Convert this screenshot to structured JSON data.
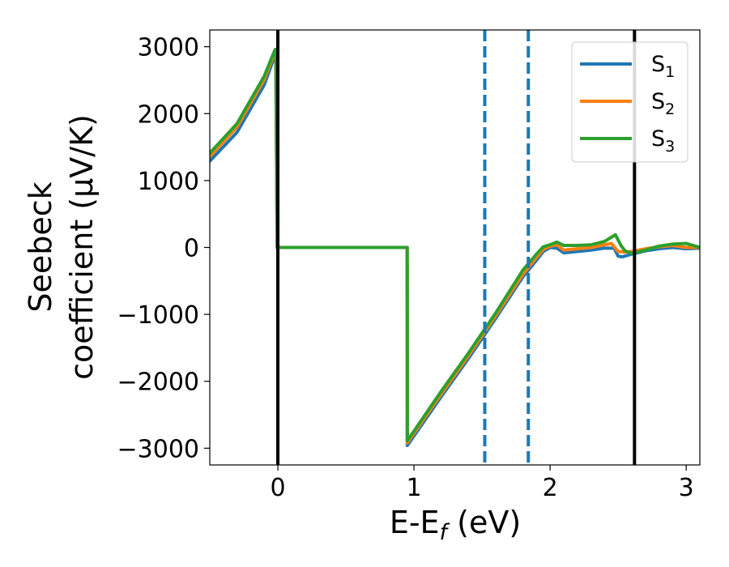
{
  "chart_data": {
    "type": "line",
    "xlabel": "E-E_f (eV)",
    "xlabel_parts": {
      "base": "E-E",
      "sub": "f",
      "unit": " (eV)"
    },
    "ylabel_lines": [
      "Seebeck",
      "coefficient  (μV/K)"
    ],
    "xlim": [
      -0.5,
      3.1
    ],
    "ylim": [
      -3250,
      3250
    ],
    "xticks": [
      0,
      1,
      2,
      3
    ],
    "xtick_labels": [
      "0",
      "1",
      "2",
      "3"
    ],
    "yticks": [
      3000,
      2000,
      1000,
      0,
      -1000,
      -2000,
      -3000
    ],
    "ytick_labels": [
      "3000",
      "2000",
      "1000",
      "0",
      "−1000",
      "−2000",
      "−3000"
    ],
    "grid": false,
    "legend": {
      "position": "top-right"
    },
    "vlines": [
      {
        "x": 0.0,
        "style": "solid",
        "color": "#000000"
      },
      {
        "x": 2.62,
        "style": "solid",
        "color": "#000000"
      },
      {
        "x": 1.52,
        "style": "dashed",
        "color": "#1f77b4"
      },
      {
        "x": 1.84,
        "style": "dashed",
        "color": "#1f77b4"
      }
    ],
    "series": [
      {
        "name": "S",
        "sub": "1",
        "color": "#1f77b4",
        "points": [
          [
            -0.5,
            1290
          ],
          [
            -0.3,
            1720
          ],
          [
            -0.1,
            2430
          ],
          [
            -0.02,
            2880
          ],
          [
            -0.015,
            2880
          ],
          [
            -0.005,
            0
          ],
          [
            0.95,
            0
          ],
          [
            0.951,
            -2960
          ],
          [
            1.2,
            -2230
          ],
          [
            1.4,
            -1660
          ],
          [
            1.6,
            -1060
          ],
          [
            1.8,
            -440
          ],
          [
            1.9,
            -190
          ],
          [
            1.95,
            -60
          ],
          [
            2.0,
            0
          ],
          [
            2.05,
            -10
          ],
          [
            2.1,
            -80
          ],
          [
            2.2,
            -60
          ],
          [
            2.3,
            -40
          ],
          [
            2.4,
            -10
          ],
          [
            2.47,
            -10
          ],
          [
            2.5,
            -130
          ],
          [
            2.53,
            -140
          ],
          [
            2.6,
            -100
          ],
          [
            2.7,
            -50
          ],
          [
            2.8,
            -20
          ],
          [
            2.9,
            0
          ],
          [
            3.0,
            -20
          ],
          [
            3.1,
            -10
          ]
        ]
      },
      {
        "name": "S",
        "sub": "2",
        "color": "#ff7f0e",
        "points": [
          [
            -0.5,
            1360
          ],
          [
            -0.3,
            1800
          ],
          [
            -0.1,
            2510
          ],
          [
            -0.02,
            2930
          ],
          [
            -0.015,
            2930
          ],
          [
            -0.005,
            0
          ],
          [
            0.95,
            0
          ],
          [
            0.951,
            -2920
          ],
          [
            1.2,
            -2190
          ],
          [
            1.4,
            -1620
          ],
          [
            1.6,
            -1020
          ],
          [
            1.8,
            -400
          ],
          [
            1.9,
            -150
          ],
          [
            1.95,
            -30
          ],
          [
            2.0,
            20
          ],
          [
            2.05,
            40
          ],
          [
            2.1,
            -40
          ],
          [
            2.2,
            -20
          ],
          [
            2.3,
            0
          ],
          [
            2.4,
            40
          ],
          [
            2.45,
            60
          ],
          [
            2.5,
            -60
          ],
          [
            2.55,
            -70
          ],
          [
            2.6,
            -60
          ],
          [
            2.7,
            -20
          ],
          [
            2.8,
            10
          ],
          [
            2.9,
            30
          ],
          [
            3.0,
            0
          ],
          [
            3.1,
            0
          ]
        ]
      },
      {
        "name": "S",
        "sub": "3",
        "color": "#2ca02c",
        "points": [
          [
            -0.5,
            1410
          ],
          [
            -0.3,
            1850
          ],
          [
            -0.1,
            2560
          ],
          [
            -0.02,
            2960
          ],
          [
            -0.015,
            2960
          ],
          [
            -0.005,
            0
          ],
          [
            0.95,
            0
          ],
          [
            0.951,
            -2890
          ],
          [
            1.2,
            -2150
          ],
          [
            1.4,
            -1580
          ],
          [
            1.6,
            -980
          ],
          [
            1.8,
            -340
          ],
          [
            1.9,
            -100
          ],
          [
            1.95,
            10
          ],
          [
            2.0,
            40
          ],
          [
            2.05,
            80
          ],
          [
            2.1,
            30
          ],
          [
            2.2,
            30
          ],
          [
            2.3,
            40
          ],
          [
            2.4,
            90
          ],
          [
            2.48,
            190
          ],
          [
            2.52,
            30
          ],
          [
            2.55,
            -50
          ],
          [
            2.6,
            -90
          ],
          [
            2.7,
            -40
          ],
          [
            2.8,
            20
          ],
          [
            2.9,
            50
          ],
          [
            3.0,
            60
          ],
          [
            3.1,
            0
          ]
        ]
      }
    ]
  }
}
